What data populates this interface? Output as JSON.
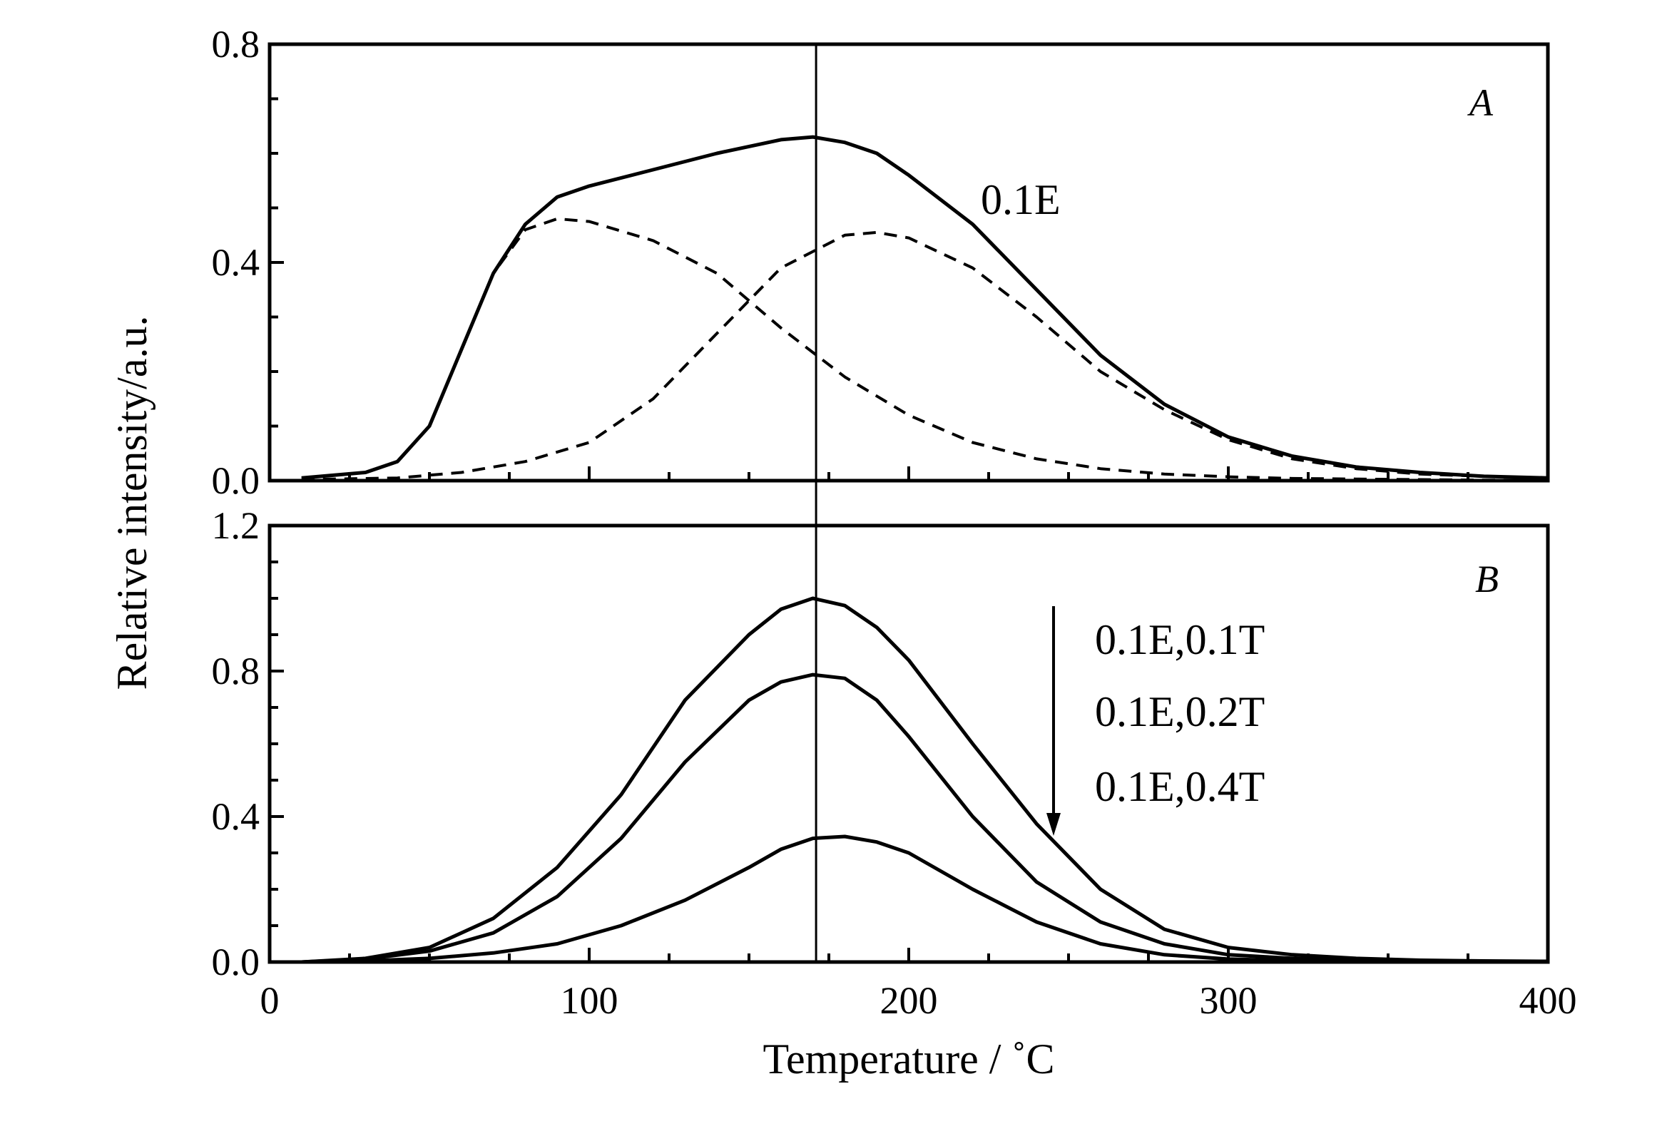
{
  "chart_data": [
    {
      "type": "line",
      "panel_label": "A",
      "annotation": "0.1E",
      "xlim": [
        0,
        400
      ],
      "ylim": [
        0,
        0.8
      ],
      "yticks": [
        0.0,
        0.4,
        0.8
      ],
      "ytick_labels": [
        "0.0",
        "0.4",
        "0.8"
      ],
      "xticks_minor": [
        0,
        25,
        50,
        75,
        100,
        125,
        150,
        175,
        200,
        225,
        250,
        275,
        300,
        325,
        350,
        375,
        400
      ],
      "vertical_reference_line_x": 171,
      "series": [
        {
          "style": "solid",
          "x": [
            10,
            30,
            40,
            50,
            60,
            70,
            80,
            90,
            100,
            120,
            140,
            160,
            170,
            180,
            190,
            200,
            220,
            240,
            260,
            280,
            300,
            320,
            340,
            360,
            380,
            400
          ],
          "y": [
            0.005,
            0.015,
            0.035,
            0.1,
            0.24,
            0.38,
            0.47,
            0.52,
            0.54,
            0.57,
            0.6,
            0.625,
            0.63,
            0.62,
            0.6,
            0.56,
            0.47,
            0.35,
            0.23,
            0.14,
            0.08,
            0.045,
            0.025,
            0.015,
            0.008,
            0.005
          ]
        },
        {
          "style": "dashed",
          "x": [
            10,
            30,
            40,
            50,
            60,
            70,
            80,
            90,
            100,
            120,
            140,
            160,
            180,
            200,
            220,
            240,
            260,
            280,
            300,
            320,
            340,
            360,
            380,
            400
          ],
          "y": [
            0.005,
            0.015,
            0.035,
            0.1,
            0.24,
            0.38,
            0.46,
            0.48,
            0.475,
            0.44,
            0.38,
            0.28,
            0.19,
            0.12,
            0.07,
            0.04,
            0.022,
            0.012,
            0.007,
            0.004,
            0.003,
            0.002,
            0.001,
            0.001
          ]
        },
        {
          "style": "dashed",
          "x": [
            10,
            40,
            60,
            80,
            100,
            120,
            140,
            160,
            180,
            190,
            200,
            220,
            240,
            260,
            280,
            300,
            320,
            340,
            360,
            380,
            400
          ],
          "y": [
            0.002,
            0.005,
            0.015,
            0.035,
            0.07,
            0.15,
            0.27,
            0.39,
            0.45,
            0.455,
            0.445,
            0.39,
            0.3,
            0.2,
            0.13,
            0.075,
            0.04,
            0.022,
            0.012,
            0.008,
            0.005
          ]
        }
      ]
    },
    {
      "type": "line",
      "panel_label": "B",
      "xlabel": "Temperature / ˚C",
      "ylabel": "Relative intensity/a.u.",
      "xlim": [
        0,
        400
      ],
      "ylim": [
        0,
        1.2
      ],
      "xticks": [
        0,
        100,
        200,
        300,
        400
      ],
      "xtick_labels": [
        "0",
        "100",
        "200",
        "300",
        "400"
      ],
      "xticks_minor": [
        0,
        25,
        50,
        75,
        100,
        125,
        150,
        175,
        200,
        225,
        250,
        275,
        300,
        325,
        350,
        375,
        400
      ],
      "yticks": [
        0.0,
        0.4,
        0.8,
        1.2
      ],
      "ytick_labels": [
        "0.0",
        "0.4",
        "0.8",
        "1.2"
      ],
      "vertical_reference_line_x": 171,
      "legend_arrow": "down",
      "series": [
        {
          "name": "0.1E,0.1T",
          "x": [
            10,
            30,
            50,
            70,
            90,
            110,
            130,
            150,
            160,
            170,
            180,
            190,
            200,
            220,
            240,
            260,
            280,
            300,
            320,
            340,
            360,
            380,
            400
          ],
          "y": [
            0.0,
            0.01,
            0.04,
            0.12,
            0.26,
            0.46,
            0.72,
            0.9,
            0.97,
            1.0,
            0.98,
            0.92,
            0.83,
            0.6,
            0.38,
            0.2,
            0.09,
            0.04,
            0.02,
            0.01,
            0.005,
            0.003,
            0.002
          ]
        },
        {
          "name": "0.1E,0.2T",
          "x": [
            10,
            30,
            50,
            70,
            90,
            110,
            130,
            150,
            160,
            170,
            180,
            190,
            200,
            220,
            240,
            260,
            280,
            300,
            320,
            340,
            360,
            380,
            400
          ],
          "y": [
            0.0,
            0.008,
            0.03,
            0.08,
            0.18,
            0.34,
            0.55,
            0.72,
            0.77,
            0.79,
            0.78,
            0.72,
            0.62,
            0.4,
            0.22,
            0.11,
            0.05,
            0.02,
            0.01,
            0.005,
            0.003,
            0.002,
            0.001
          ]
        },
        {
          "name": "0.1E,0.4T",
          "x": [
            10,
            30,
            50,
            70,
            90,
            110,
            130,
            150,
            160,
            170,
            180,
            190,
            200,
            220,
            240,
            260,
            280,
            300,
            320,
            340,
            360,
            380,
            400
          ],
          "y": [
            0.0,
            0.003,
            0.01,
            0.025,
            0.05,
            0.1,
            0.17,
            0.26,
            0.31,
            0.34,
            0.345,
            0.33,
            0.3,
            0.2,
            0.11,
            0.05,
            0.02,
            0.008,
            0.004,
            0.002,
            0.001,
            0.001,
            0.0
          ]
        }
      ]
    }
  ]
}
